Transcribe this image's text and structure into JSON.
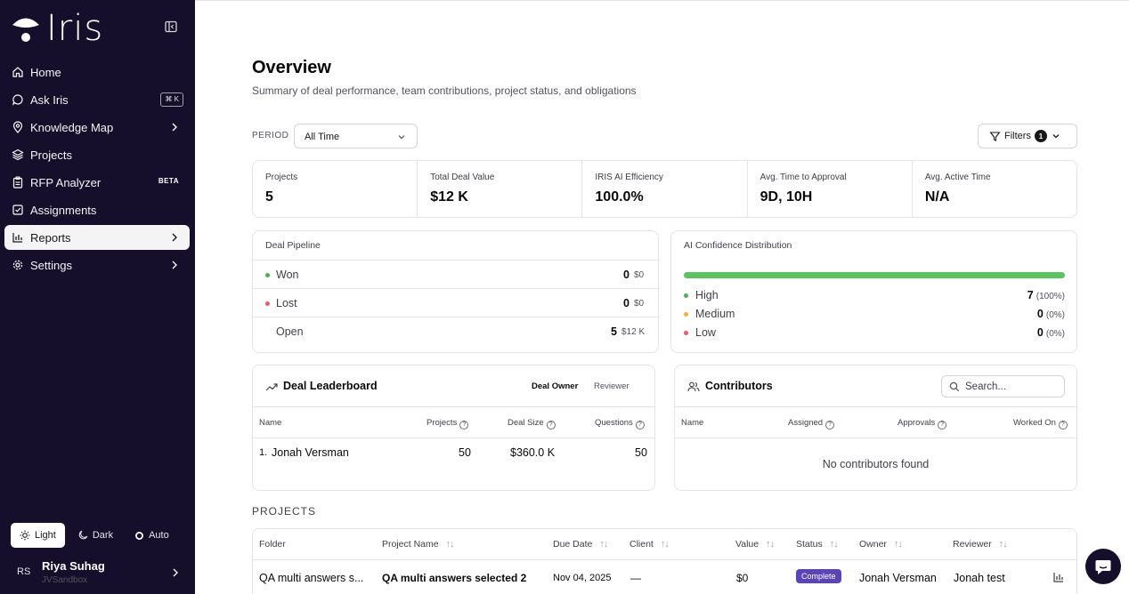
{
  "app": {
    "logo_text": "Iris"
  },
  "sidebar": {
    "items": [
      {
        "label": "Home",
        "icon": "home-icon"
      },
      {
        "label": "Ask Iris",
        "icon": "chat-icon",
        "shortcut": "⌘ K"
      },
      {
        "label": "Knowledge Map",
        "icon": "location-pin-icon"
      },
      {
        "label": "Projects",
        "icon": "layers-icon"
      },
      {
        "label": "RFP Analyzer",
        "icon": "clipboard-icon",
        "badge": "BETA"
      },
      {
        "label": "Assignments",
        "icon": "checkbox-icon"
      },
      {
        "label": "Reports",
        "icon": "bar-chart-icon",
        "active": true
      },
      {
        "label": "Settings",
        "icon": "gear-icon"
      }
    ],
    "theme": {
      "light": "Light",
      "dark": "Dark",
      "auto": "Auto"
    },
    "user": {
      "initials": "RS",
      "name": "Riya Suhag",
      "org": "JVSandbox"
    }
  },
  "header": {
    "title": "Overview",
    "subtitle": "Summary of deal performance, team contributions, project status, and obligations"
  },
  "filters": {
    "period_label": "PERIOD",
    "period_value": "All Time",
    "filters_label": "Filters",
    "filters_count": "1"
  },
  "stats": [
    {
      "label": "Projects",
      "value": "5"
    },
    {
      "label": "Total Deal Value",
      "value": "$12 K"
    },
    {
      "label": "IRIS AI Efficiency",
      "value": "100.0%"
    },
    {
      "label": "Avg. Time to Approval",
      "value": "9D, 10H"
    },
    {
      "label": "Avg. Active Time",
      "value": "N/A"
    }
  ],
  "pipeline": {
    "title": "Deal Pipeline",
    "rows": [
      {
        "label": "Won",
        "count": "0",
        "amount": "$0",
        "color": "#4caf50"
      },
      {
        "label": "Lost",
        "count": "0",
        "amount": "$0",
        "color": "#ef5b6b"
      },
      {
        "label": "Open",
        "count": "5",
        "amount": "$12 K",
        "color": ""
      }
    ]
  },
  "confidence": {
    "title": "AI Confidence Distribution",
    "high_fraction": 1.0,
    "rows": [
      {
        "label": "High",
        "count": "7",
        "pct": "(100%)",
        "color": "#4caf50"
      },
      {
        "label": "Medium",
        "count": "0",
        "pct": "(0%)",
        "color": "#f0b429"
      },
      {
        "label": "Low",
        "count": "0",
        "pct": "(0%)",
        "color": "#ef5b6b"
      }
    ]
  },
  "leaderboard": {
    "title": "Deal Leaderboard",
    "tabs": [
      "Deal Owner",
      "Reviewer"
    ],
    "columns": [
      "Name",
      "Projects",
      "Deal Size",
      "Questions"
    ],
    "rows": [
      {
        "rank": "1.",
        "name": "Jonah Versman",
        "projects": "50",
        "deal_size": "$360.0 K",
        "questions": "50"
      }
    ]
  },
  "contributors": {
    "title": "Contributors",
    "search_placeholder": "Search...",
    "columns": [
      "Name",
      "Assigned",
      "Approvals",
      "Worked On"
    ],
    "empty": "No contributors found"
  },
  "projects": {
    "section_label": "PROJECTS",
    "columns": [
      "Folder",
      "Project Name",
      "Due Date",
      "Client",
      "Value",
      "Status",
      "Owner",
      "Reviewer"
    ],
    "rows": [
      {
        "folder": "QA multi answers s...",
        "name": "QA multi answers selected 2",
        "due": "Nov 04, 2025",
        "client": "—",
        "value": "$0",
        "status": "Complete",
        "owner": "Jonah Versman",
        "reviewer": "Jonah test"
      }
    ]
  }
}
